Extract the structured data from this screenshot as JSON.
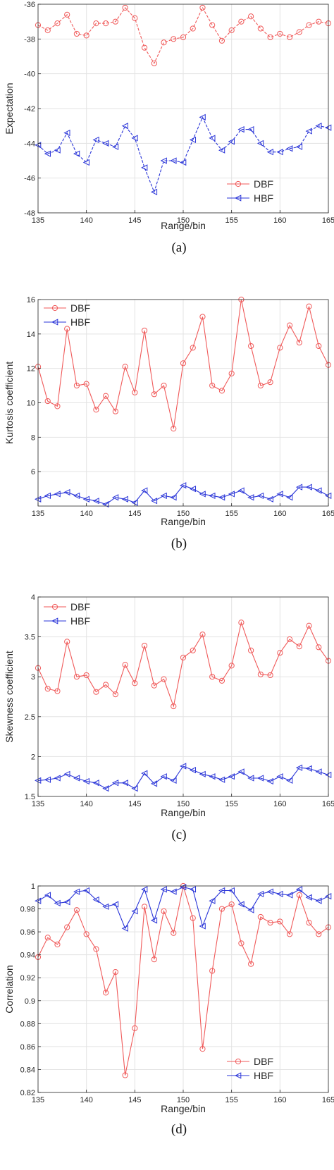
{
  "chart_data": [
    {
      "type": "line",
      "caption": "(a)",
      "xlabel": "Range/bin",
      "ylabel": "Expectation",
      "xlim": [
        135,
        165
      ],
      "ylim": [
        -48,
        -36
      ],
      "xticks": [
        135,
        140,
        145,
        150,
        155,
        160,
        165
      ],
      "yticks": [
        -48,
        -46,
        -44,
        -42,
        -40,
        -38,
        -36
      ],
      "grid": true,
      "line_style": "dashed",
      "legend_position": "bottom-right",
      "x": [
        135,
        136,
        137,
        138,
        139,
        140,
        141,
        142,
        143,
        144,
        145,
        146,
        147,
        148,
        149,
        150,
        151,
        152,
        153,
        154,
        155,
        156,
        157,
        158,
        159,
        160,
        161,
        162,
        163,
        164,
        165
      ],
      "series": [
        {
          "name": "DBF",
          "color": "#f05a5a",
          "marker": "circle",
          "values": [
            -37.2,
            -37.5,
            -37.1,
            -36.6,
            -37.7,
            -37.8,
            -37.1,
            -37.1,
            -37.0,
            -36.2,
            -36.8,
            -38.5,
            -39.4,
            -38.2,
            -38.0,
            -37.9,
            -37.4,
            -36.2,
            -37.2,
            -38.1,
            -37.5,
            -37.0,
            -36.7,
            -37.4,
            -37.9,
            -37.7,
            -37.9,
            -37.6,
            -37.2,
            -37.0,
            -37.1
          ]
        },
        {
          "name": "HBF",
          "color": "#2a35d8",
          "marker": "triangle-left",
          "values": [
            -44.1,
            -44.6,
            -44.4,
            -43.4,
            -44.6,
            -45.1,
            -43.8,
            -44.0,
            -44.2,
            -43.0,
            -43.7,
            -45.4,
            -46.8,
            -45.0,
            -45.0,
            -45.1,
            -43.8,
            -42.5,
            -43.7,
            -44.4,
            -43.9,
            -43.2,
            -43.2,
            -44.0,
            -44.5,
            -44.5,
            -44.3,
            -44.2,
            -43.3,
            -43.0,
            -43.1
          ]
        }
      ]
    },
    {
      "type": "line",
      "caption": "(b)",
      "xlabel": "Range/bin",
      "ylabel": "Kurtosis coefficient",
      "xlim": [
        135,
        165
      ],
      "ylim": [
        4,
        16
      ],
      "xticks": [
        135,
        140,
        145,
        150,
        155,
        160,
        165
      ],
      "yticks": [
        6,
        8,
        10,
        12,
        14,
        16
      ],
      "grid": true,
      "line_style": "solid",
      "legend_position": "top-left",
      "x": [
        135,
        136,
        137,
        138,
        139,
        140,
        141,
        142,
        143,
        144,
        145,
        146,
        147,
        148,
        149,
        150,
        151,
        152,
        153,
        154,
        155,
        156,
        157,
        158,
        159,
        160,
        161,
        162,
        163,
        164,
        165
      ],
      "series": [
        {
          "name": "DBF",
          "color": "#f05a5a",
          "marker": "circle",
          "values": [
            12.1,
            10.1,
            9.8,
            14.3,
            11.0,
            11.1,
            9.6,
            10.4,
            9.5,
            12.1,
            10.6,
            14.2,
            10.5,
            11.0,
            8.5,
            12.3,
            13.2,
            15.0,
            11.0,
            10.7,
            11.7,
            16.0,
            13.3,
            11.0,
            11.2,
            13.2,
            14.5,
            13.5,
            15.6,
            13.3,
            12.2
          ]
        },
        {
          "name": "HBF",
          "color": "#2a35d8",
          "marker": "triangle-left",
          "values": [
            4.4,
            4.6,
            4.7,
            4.8,
            4.6,
            4.4,
            4.3,
            4.1,
            4.5,
            4.4,
            4.2,
            4.9,
            4.3,
            4.6,
            4.5,
            5.2,
            5.0,
            4.7,
            4.6,
            4.5,
            4.7,
            4.9,
            4.5,
            4.6,
            4.4,
            4.7,
            4.5,
            5.1,
            5.1,
            4.9,
            4.6
          ]
        }
      ]
    },
    {
      "type": "line",
      "caption": "(c)",
      "xlabel": "Range/bin",
      "ylabel": "Skewness coefficient",
      "xlim": [
        135,
        165
      ],
      "ylim": [
        1.5,
        4
      ],
      "xticks": [
        135,
        140,
        145,
        150,
        155,
        160,
        165
      ],
      "yticks": [
        1.5,
        2,
        2.5,
        3,
        3.5,
        4
      ],
      "grid": true,
      "line_style": "solid",
      "legend_position": "top-left",
      "x": [
        135,
        136,
        137,
        138,
        139,
        140,
        141,
        142,
        143,
        144,
        145,
        146,
        147,
        148,
        149,
        150,
        151,
        152,
        153,
        154,
        155,
        156,
        157,
        158,
        159,
        160,
        161,
        162,
        163,
        164,
        165
      ],
      "series": [
        {
          "name": "DBF",
          "color": "#f05a5a",
          "marker": "circle",
          "values": [
            3.11,
            2.85,
            2.82,
            3.44,
            3.0,
            3.02,
            2.81,
            2.9,
            2.78,
            3.15,
            2.92,
            3.39,
            2.89,
            2.97,
            2.63,
            3.24,
            3.33,
            3.53,
            3.0,
            2.95,
            3.14,
            3.68,
            3.33,
            3.03,
            3.02,
            3.3,
            3.47,
            3.38,
            3.64,
            3.37,
            3.2
          ]
        },
        {
          "name": "HBF",
          "color": "#2a35d8",
          "marker": "triangle-left",
          "values": [
            1.7,
            1.71,
            1.73,
            1.78,
            1.73,
            1.69,
            1.67,
            1.6,
            1.67,
            1.67,
            1.6,
            1.79,
            1.66,
            1.75,
            1.7,
            1.88,
            1.83,
            1.78,
            1.75,
            1.71,
            1.75,
            1.81,
            1.73,
            1.73,
            1.69,
            1.75,
            1.7,
            1.86,
            1.85,
            1.81,
            1.77
          ]
        }
      ]
    },
    {
      "type": "line",
      "caption": "(d)",
      "xlabel": "Range/bin",
      "ylabel": "Correlation",
      "xlim": [
        135,
        165
      ],
      "ylim": [
        0.82,
        1
      ],
      "xticks": [
        135,
        140,
        145,
        150,
        155,
        160,
        165
      ],
      "yticks": [
        0.82,
        0.84,
        0.86,
        0.88,
        0.9,
        0.92,
        0.94,
        0.96,
        0.98,
        1
      ],
      "grid": true,
      "line_style": "solid",
      "legend_position": "bottom-right",
      "x": [
        135,
        136,
        137,
        138,
        139,
        140,
        141,
        142,
        143,
        144,
        145,
        146,
        147,
        148,
        149,
        150,
        151,
        152,
        153,
        154,
        155,
        156,
        157,
        158,
        159,
        160,
        161,
        162,
        163,
        164,
        165
      ],
      "series": [
        {
          "name": "DBF",
          "color": "#f05a5a",
          "marker": "circle",
          "values": [
            0.938,
            0.955,
            0.949,
            0.964,
            0.979,
            0.958,
            0.945,
            0.907,
            0.925,
            0.835,
            0.876,
            0.982,
            0.936,
            0.978,
            0.959,
            1.0,
            0.972,
            0.858,
            0.926,
            0.98,
            0.984,
            0.95,
            0.932,
            0.973,
            0.968,
            0.969,
            0.958,
            0.992,
            0.968,
            0.958,
            0.964
          ]
        },
        {
          "name": "HBF",
          "color": "#2a35d8",
          "marker": "triangle-left",
          "values": [
            0.987,
            0.992,
            0.985,
            0.986,
            0.995,
            0.996,
            0.988,
            0.982,
            0.984,
            0.963,
            0.978,
            0.997,
            0.97,
            0.997,
            0.995,
            0.999,
            0.997,
            0.965,
            0.987,
            0.996,
            0.996,
            0.984,
            0.979,
            0.993,
            0.995,
            0.993,
            0.992,
            0.997,
            0.99,
            0.987,
            0.991
          ]
        }
      ]
    }
  ]
}
